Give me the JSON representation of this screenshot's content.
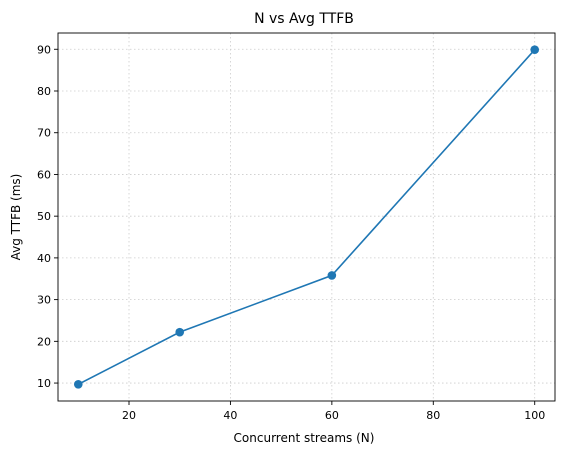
{
  "chart_data": {
    "type": "line",
    "title": "N vs Avg TTFB",
    "xlabel": "Concurrent streams (N)",
    "ylabel": "Avg TTFB (ms)",
    "x": [
      10,
      30,
      60,
      100
    ],
    "series": [
      {
        "values": [
          9.7,
          22.2,
          35.8,
          89.9
        ]
      }
    ],
    "xlim": [
      6,
      104
    ],
    "ylim": [
      5.7,
      93.9
    ],
    "xticks": [
      20,
      40,
      60,
      80,
      100
    ],
    "yticks": [
      10,
      20,
      30,
      40,
      50,
      60,
      70,
      80,
      90
    ],
    "grid": true,
    "grid_style": "dotted",
    "markers": true,
    "colors": {
      "line": "#1f77b4",
      "grid": "#cccccc",
      "axis": "#000000"
    }
  }
}
